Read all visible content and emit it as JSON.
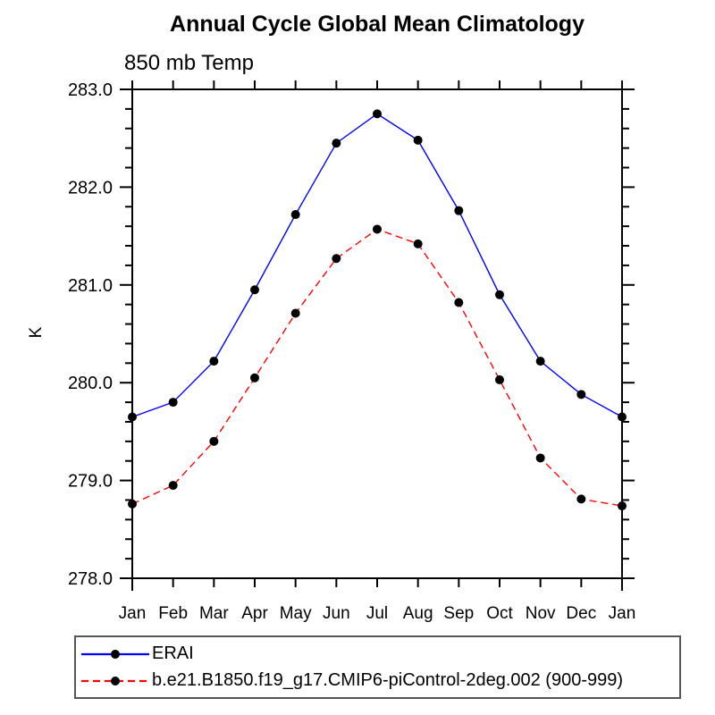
{
  "chart_data": {
    "type": "line",
    "title": "Annual Cycle Global Mean Climatology",
    "subtitle": "850 mb Temp",
    "xlabel": "",
    "ylabel": "K",
    "categories": [
      "Jan",
      "Feb",
      "Mar",
      "Apr",
      "May",
      "Jun",
      "Jul",
      "Aug",
      "Sep",
      "Oct",
      "Nov",
      "Dec",
      "Jan"
    ],
    "ylim": [
      278.0,
      283.0
    ],
    "y_major_step": 1.0,
    "y_minor_step": 0.2,
    "y_tick_labels": [
      "278.0",
      "279.0",
      "280.0",
      "281.0",
      "282.0",
      "283.0"
    ],
    "grid": false,
    "legend_position": "bottom-left",
    "axis_color": "#000000",
    "series": [
      {
        "name": "ERAI",
        "color": "#0000ff",
        "style": "solid",
        "dash": "",
        "marker": "circle",
        "marker_color": "#000000",
        "values": [
          279.65,
          279.8,
          280.22,
          280.95,
          281.72,
          282.45,
          282.75,
          282.48,
          281.76,
          280.9,
          280.22,
          279.88,
          279.65
        ]
      },
      {
        "name": "b.e21.B1850.f19_g17.CMIP6-piControl-2deg.002 (900-999)",
        "color": "#ff0000",
        "style": "dashed",
        "dash": "8 5",
        "marker": "circle",
        "marker_color": "#000000",
        "values": [
          278.76,
          278.95,
          279.4,
          280.05,
          280.71,
          281.27,
          281.57,
          281.42,
          280.82,
          280.03,
          279.23,
          278.81,
          278.74
        ]
      }
    ]
  }
}
